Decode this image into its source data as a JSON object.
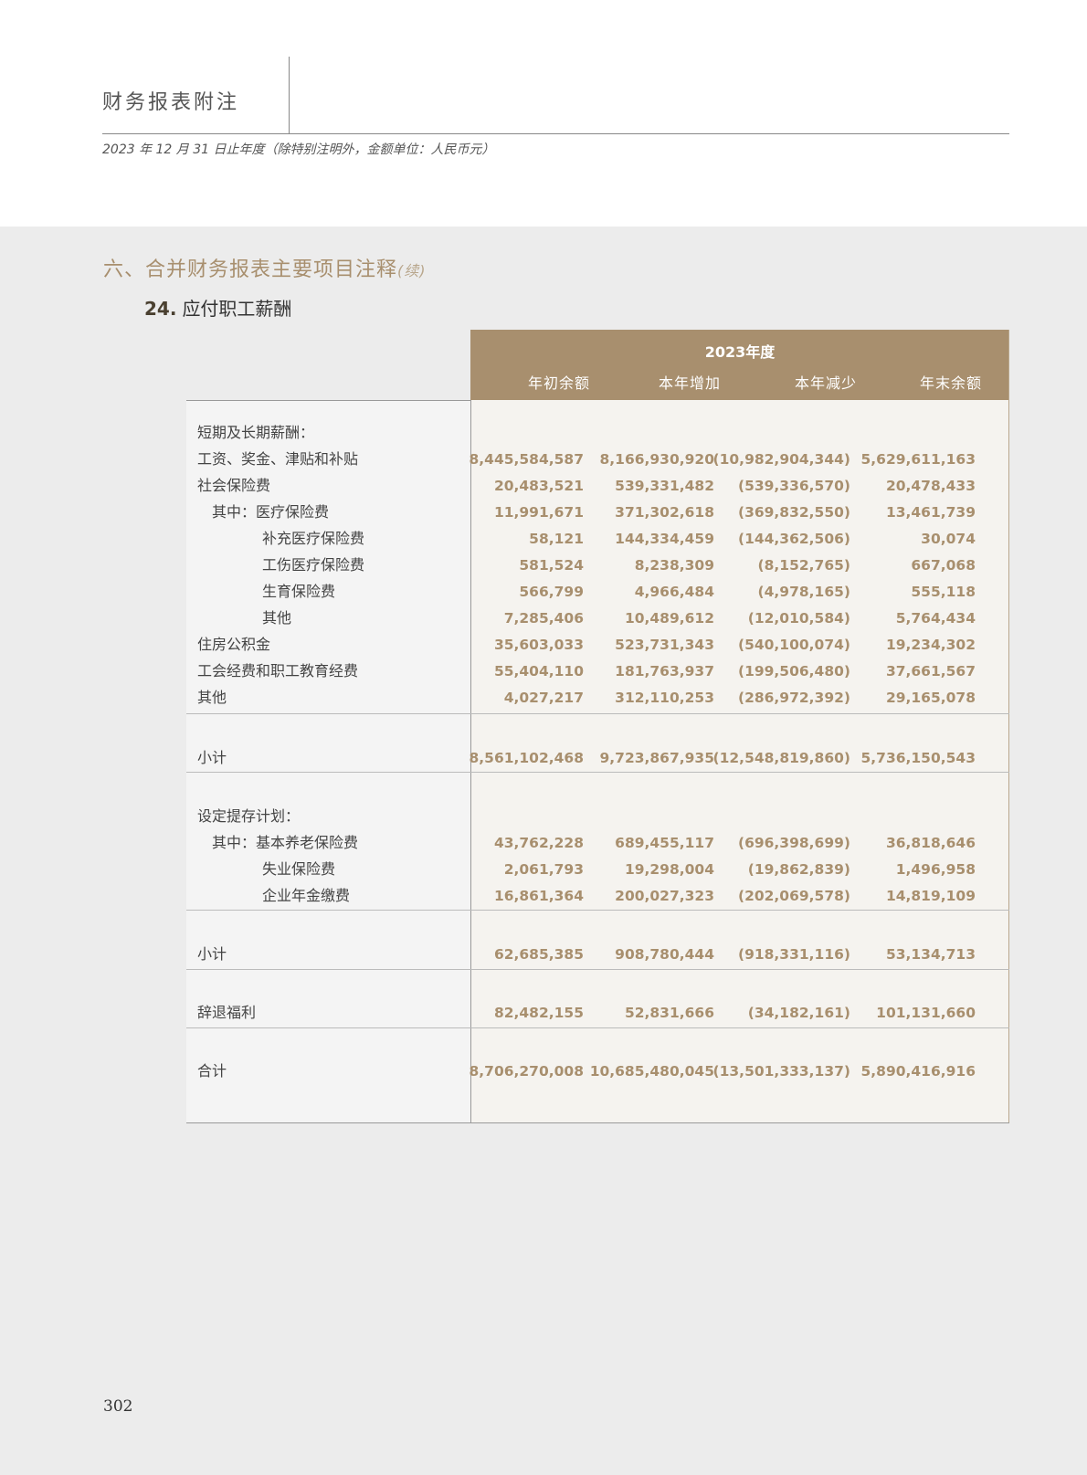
{
  "header": {
    "title": "财务报表附注",
    "subtitle": "2023 年 12 月 31 日止年度（除特别注明外，金额单位：人民币元）"
  },
  "section": {
    "title": "六、合并财务报表主要项目注释",
    "continued": "(续)"
  },
  "note": {
    "number": "24.",
    "title": "应付职工薪酬"
  },
  "table": {
    "period": "2023年度",
    "columns": [
      "年初余额",
      "本年增加",
      "本年减少",
      "年末余额"
    ],
    "sections": [
      {
        "rows": [
          {
            "label": "短期及长期薪酬：",
            "indent": 0,
            "values": [
              "",
              "",
              "",
              ""
            ]
          },
          {
            "label": "工资、奖金、津贴和补贴",
            "indent": 0,
            "values": [
              "8,445,584,587",
              "8,166,930,920",
              "(10,982,904,344)",
              "5,629,611,163"
            ]
          },
          {
            "label": "社会保险费",
            "indent": 0,
            "values": [
              "20,483,521",
              "539,331,482",
              "(539,336,570)",
              "20,478,433"
            ]
          },
          {
            "label": "其中：医疗保险费",
            "indent": 1,
            "values": [
              "11,991,671",
              "371,302,618",
              "(369,832,550)",
              "13,461,739"
            ]
          },
          {
            "label": "补充医疗保险费",
            "indent": 2,
            "values": [
              "58,121",
              "144,334,459",
              "(144,362,506)",
              "30,074"
            ]
          },
          {
            "label": "工伤医疗保险费",
            "indent": 2,
            "values": [
              "581,524",
              "8,238,309",
              "(8,152,765)",
              "667,068"
            ]
          },
          {
            "label": "生育保险费",
            "indent": 2,
            "values": [
              "566,799",
              "4,966,484",
              "(4,978,165)",
              "555,118"
            ]
          },
          {
            "label": "其他",
            "indent": 2,
            "values": [
              "7,285,406",
              "10,489,612",
              "(12,010,584)",
              "5,764,434"
            ]
          },
          {
            "label": "住房公积金",
            "indent": 0,
            "values": [
              "35,603,033",
              "523,731,343",
              "(540,100,074)",
              "19,234,302"
            ]
          },
          {
            "label": "工会经费和职工教育经费",
            "indent": 0,
            "values": [
              "55,404,110",
              "181,763,937",
              "(199,506,480)",
              "37,661,567"
            ]
          },
          {
            "label": "其他",
            "indent": 0,
            "values": [
              "4,027,217",
              "312,110,253",
              "(286,972,392)",
              "29,165,078"
            ]
          }
        ]
      },
      {
        "rows": [
          {
            "label": "小计",
            "indent": 0,
            "values": [
              "8,561,102,468",
              "9,723,867,935",
              "(12,548,819,860)",
              "5,736,150,543"
            ]
          }
        ]
      },
      {
        "rows": [
          {
            "label": "设定提存计划：",
            "indent": 0,
            "values": [
              "",
              "",
              "",
              ""
            ]
          },
          {
            "label": "其中：基本养老保险费",
            "indent": 1,
            "values": [
              "43,762,228",
              "689,455,117",
              "(696,398,699)",
              "36,818,646"
            ]
          },
          {
            "label": "失业保险费",
            "indent": 2,
            "values": [
              "2,061,793",
              "19,298,004",
              "(19,862,839)",
              "1,496,958"
            ]
          },
          {
            "label": "企业年金缴费",
            "indent": 2,
            "values": [
              "16,861,364",
              "200,027,323",
              "(202,069,578)",
              "14,819,109"
            ]
          }
        ]
      },
      {
        "rows": [
          {
            "label": "小计",
            "indent": 0,
            "values": [
              "62,685,385",
              "908,780,444",
              "(918,331,116)",
              "53,134,713"
            ]
          }
        ]
      },
      {
        "rows": [
          {
            "label": "辞退福利",
            "indent": 0,
            "values": [
              "82,482,155",
              "52,831,666",
              "(34,182,161)",
              "101,131,660"
            ]
          }
        ]
      },
      {
        "rows": [
          {
            "label": "合计",
            "indent": 0,
            "values": [
              "8,706,270,008",
              "10,685,480,045",
              "(13,501,333,137)",
              "5,890,416,916"
            ]
          }
        ]
      }
    ]
  },
  "page_number": "302",
  "colors": {
    "accent": "#a88f6e",
    "page_bg": "#ececec"
  }
}
